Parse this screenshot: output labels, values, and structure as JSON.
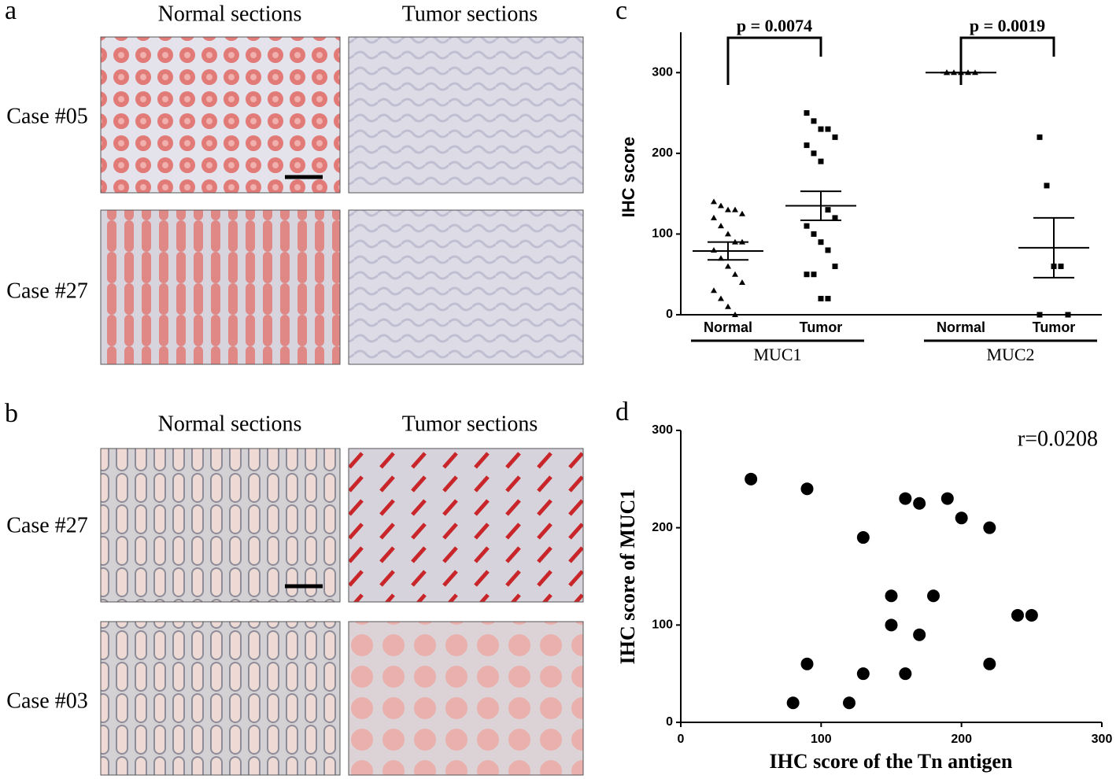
{
  "panels": {
    "a": {
      "label": "a",
      "column_titles": [
        "Normal sections",
        "Tumor sections"
      ],
      "row_labels": [
        "Case #05",
        "Case #27"
      ]
    },
    "b": {
      "label": "b",
      "column_titles": [
        "Normal sections",
        "Tumor sections"
      ],
      "row_labels": [
        "Case #27",
        "Case #03"
      ]
    }
  },
  "chart_data": [
    {
      "type": "dotplot",
      "panel_label": "c",
      "y_label": "IHC score",
      "categories": [
        "Normal",
        "Tumor",
        "Normal",
        "Tumor"
      ],
      "groups": [
        {
          "label": "MUC1",
          "categories": [
            0,
            1
          ]
        },
        {
          "label": "MUC2",
          "categories": [
            2,
            3
          ]
        }
      ],
      "markers": [
        "triangle",
        "square",
        "triangle",
        "square"
      ],
      "color": "#000000",
      "values": [
        [
          140,
          135,
          130,
          130,
          125,
          120,
          110,
          100,
          90,
          90,
          80,
          70,
          60,
          50,
          40,
          30,
          20,
          10,
          0
        ],
        [
          250,
          240,
          230,
          230,
          220,
          210,
          200,
          190,
          130,
          120,
          110,
          100,
          90,
          80,
          60,
          50,
          50,
          20,
          20
        ],
        [
          300,
          300,
          300,
          300,
          300,
          300
        ],
        [
          220,
          160,
          60,
          60,
          0,
          0
        ]
      ],
      "means": [
        79,
        135,
        300,
        83
      ],
      "sem": [
        11,
        18,
        0,
        37
      ],
      "comparisons": [
        {
          "between": [
            0,
            1
          ],
          "label": "p = 0.0074"
        },
        {
          "between": [
            2,
            3
          ],
          "label": "p = 0.0019"
        }
      ],
      "ylim": [
        0,
        350
      ],
      "yticks": [
        0,
        100,
        200,
        300
      ]
    },
    {
      "type": "scatter",
      "panel_label": "d",
      "x_label": "IHC score of the Tn antigen",
      "y_label": "IHC score of MUC1",
      "annotation": "r=0.0208",
      "color": "#000000",
      "x": [
        50,
        90,
        130,
        160,
        170,
        190,
        200,
        220,
        150,
        180,
        150,
        170,
        240,
        250,
        90,
        220,
        130,
        160,
        80,
        120
      ],
      "y": [
        250,
        240,
        190,
        230,
        225,
        230,
        210,
        200,
        130,
        130,
        100,
        90,
        110,
        110,
        60,
        60,
        50,
        50,
        20,
        20
      ],
      "xlim": [
        0,
        300
      ],
      "xticks": [
        0,
        100,
        200,
        300
      ],
      "ylim": [
        0,
        300
      ],
      "yticks": [
        0,
        100,
        200,
        300
      ]
    }
  ]
}
